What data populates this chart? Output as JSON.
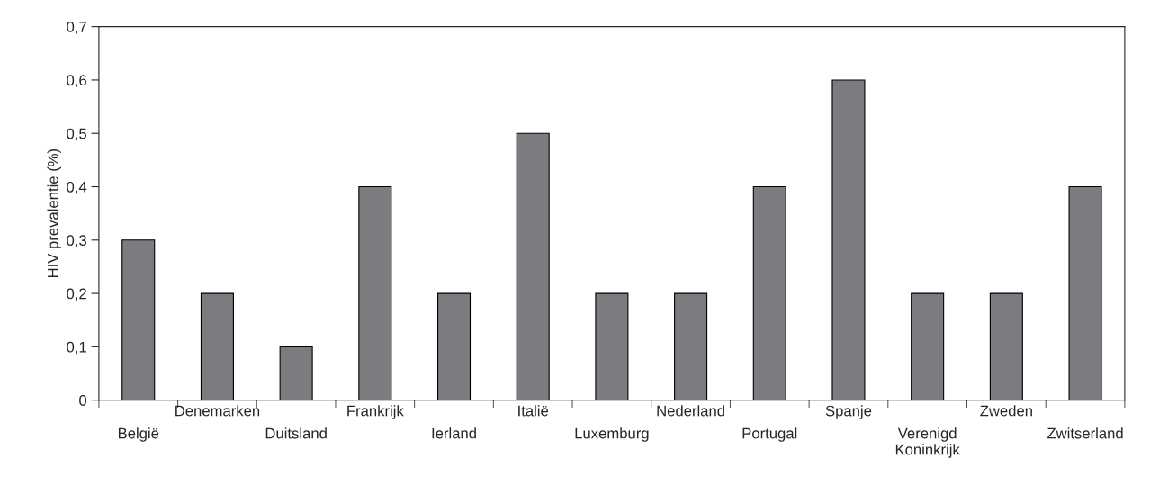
{
  "chart_data": {
    "type": "bar",
    "ylabel": "HIV prevalentie (%)",
    "categories": [
      "België",
      "Denemarken",
      "Duitsland",
      "Frankrijk",
      "Ierland",
      "Italië",
      "Luxemburg",
      "Nederland",
      "Portugal",
      "Spanje",
      "Verenigd\nKoninkrijk",
      "Zweden",
      "Zwitserland"
    ],
    "values": [
      0.3,
      0.2,
      0.1,
      0.4,
      0.2,
      0.5,
      0.2,
      0.2,
      0.4,
      0.6,
      0.2,
      0.2,
      0.4
    ],
    "color": "#7b7c80",
    "ylim": [
      0,
      0.7
    ],
    "yticks": [
      0,
      {
        "value": 0.1,
        "label": "0,1"
      },
      {
        "value": 0.2,
        "label": "0,2"
      },
      {
        "value": 0.3,
        "label": "0,3"
      },
      {
        "value": 0.4,
        "label": "0,4"
      },
      {
        "value": 0.5,
        "label": "0,5"
      },
      {
        "value": 0.6,
        "label": "0,6"
      },
      {
        "value": 0.7,
        "label": "0,7"
      }
    ],
    "grid": false,
    "legend": false
  }
}
